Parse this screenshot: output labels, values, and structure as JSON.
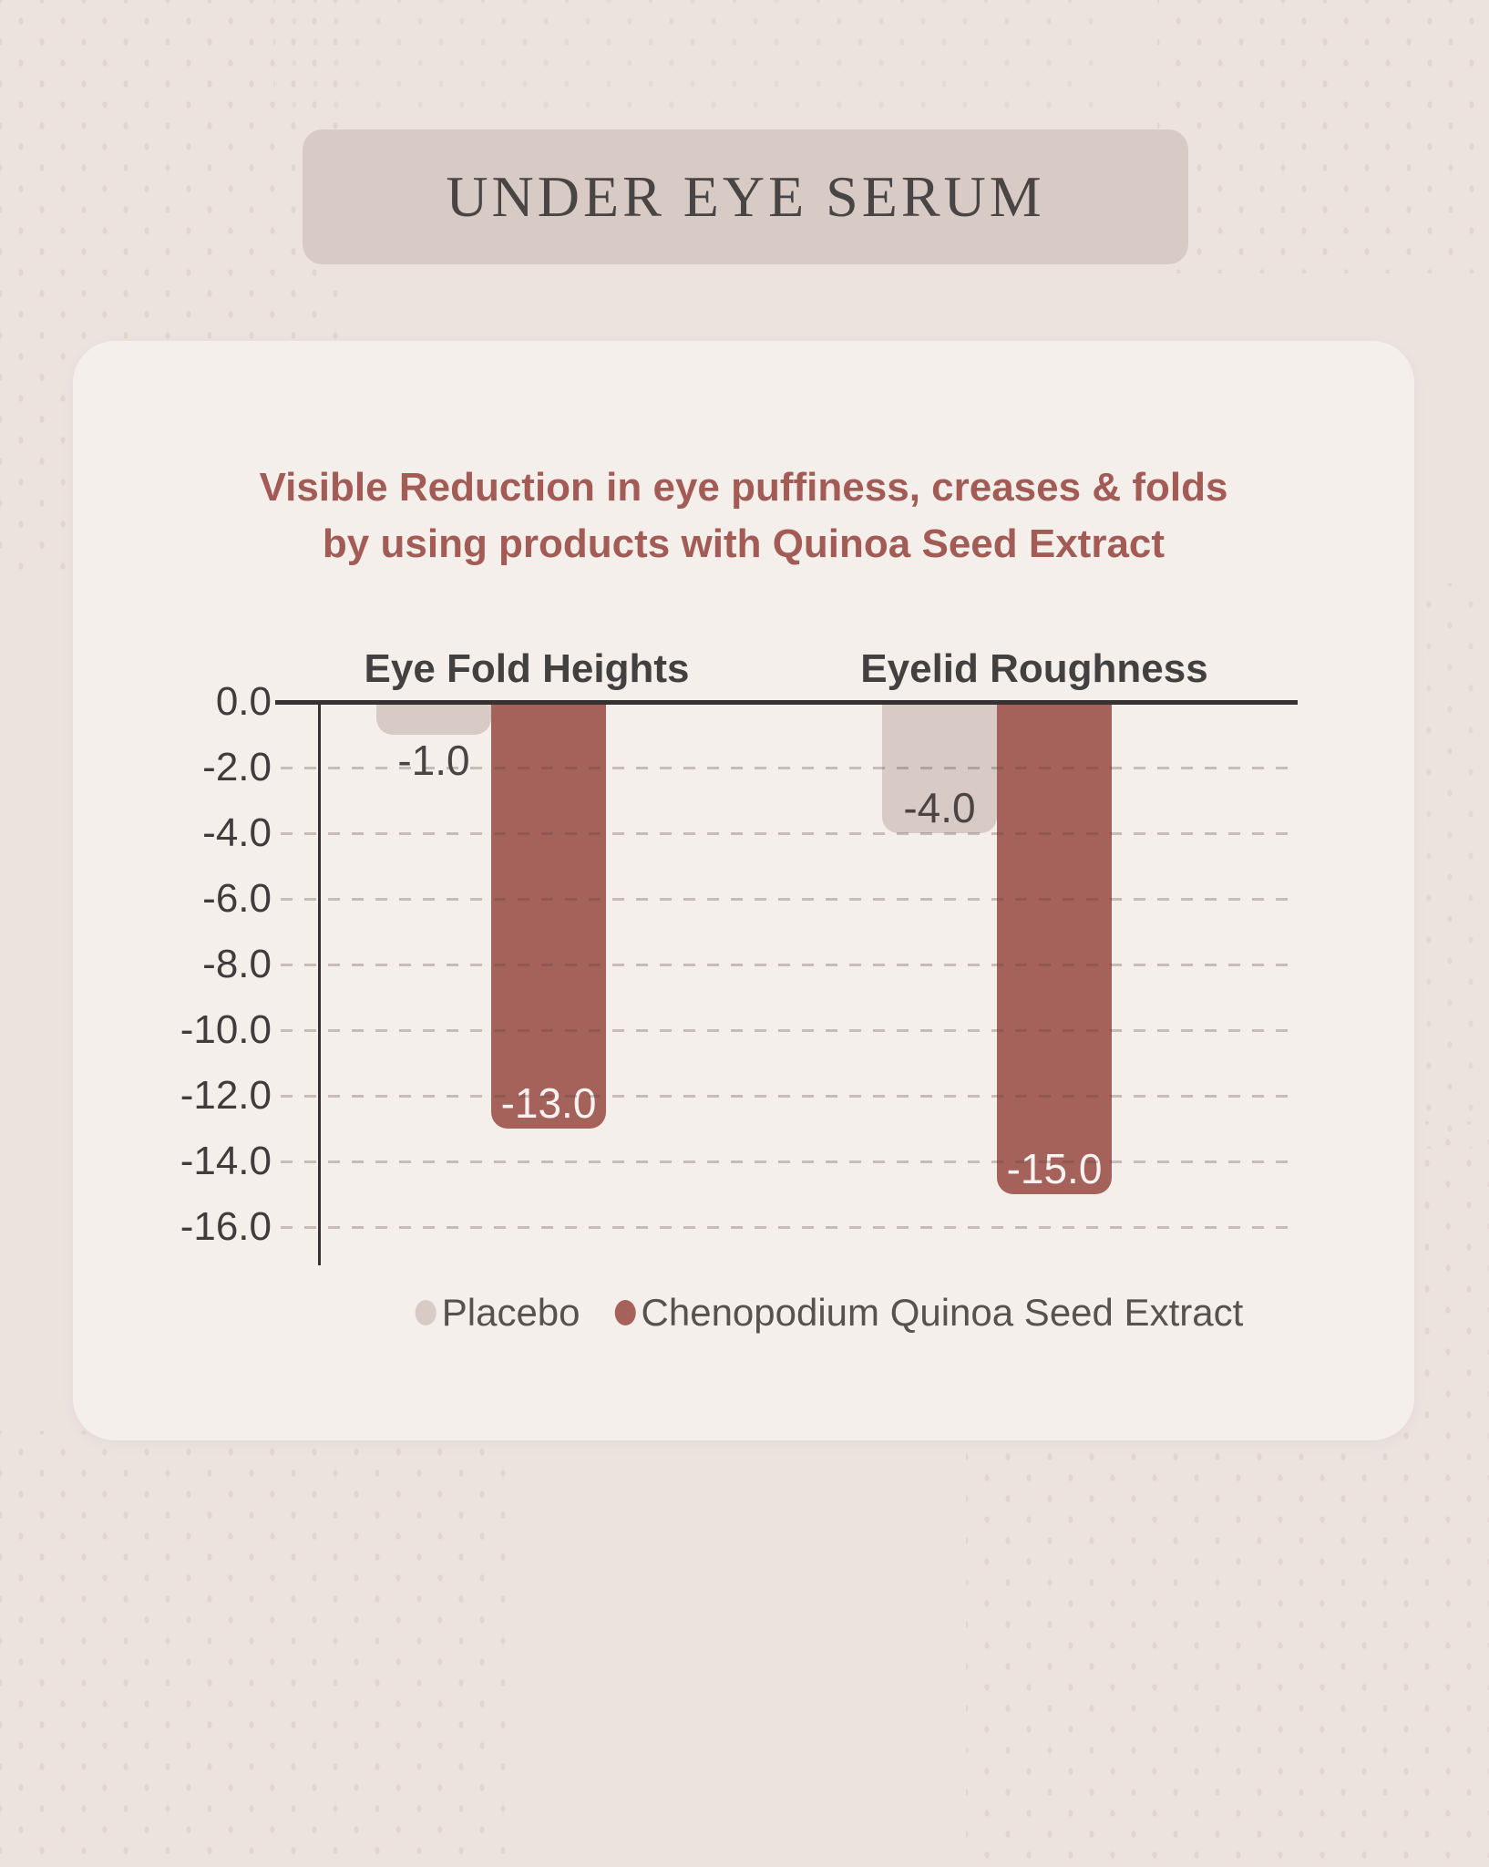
{
  "header": {
    "title": "UNDER EYE SERUM"
  },
  "subtitle": {
    "line1": "Visible Reduction in eye puffiness, creases & folds",
    "line2": "by using products with Quinoa Seed Extract"
  },
  "chart_data": {
    "type": "bar",
    "title": "Visible Reduction in eye puffiness, creases & folds by using products with Quinoa Seed Extract",
    "categories": [
      "Eye Fold Heights",
      "Eyelid Roughness"
    ],
    "series": [
      {
        "name": "Placebo",
        "color": "#d8cac4",
        "values": [
          -1.0,
          -4.0
        ],
        "labels": [
          "-1.0",
          "-4.0"
        ]
      },
      {
        "name": "Chenopodium Quinoa Seed Extract",
        "color": "#a5625b",
        "values": [
          -13.0,
          -15.0
        ],
        "labels": [
          "-13.0",
          "-15.0"
        ]
      }
    ],
    "ylim": [
      -16.0,
      0.0
    ],
    "ytick_step": 2.0,
    "yticks": [
      "0.0",
      "-2.0",
      "-4.0",
      "-6.0",
      "-8.0",
      "-10.0",
      "-12.0",
      "-14.0",
      "-16.0"
    ],
    "grid": "horizontal-dashed",
    "legend_position": "bottom"
  },
  "colors": {
    "background": "#ece3df",
    "dot": "#ddcec9",
    "banner": "#d8cbc6",
    "title_text": "#4a4545",
    "card": "#f5efec",
    "subtitle_text": "#a25c55",
    "header_text": "#434040",
    "tick_text": "#3f3c3b",
    "axis_line": "#363231",
    "placebo": "#d8cac4",
    "extract": "#a5625b",
    "bar_label_dark": "#4a4544",
    "bar_label_light": "#f8f3f1",
    "legend_text": "#575250"
  }
}
